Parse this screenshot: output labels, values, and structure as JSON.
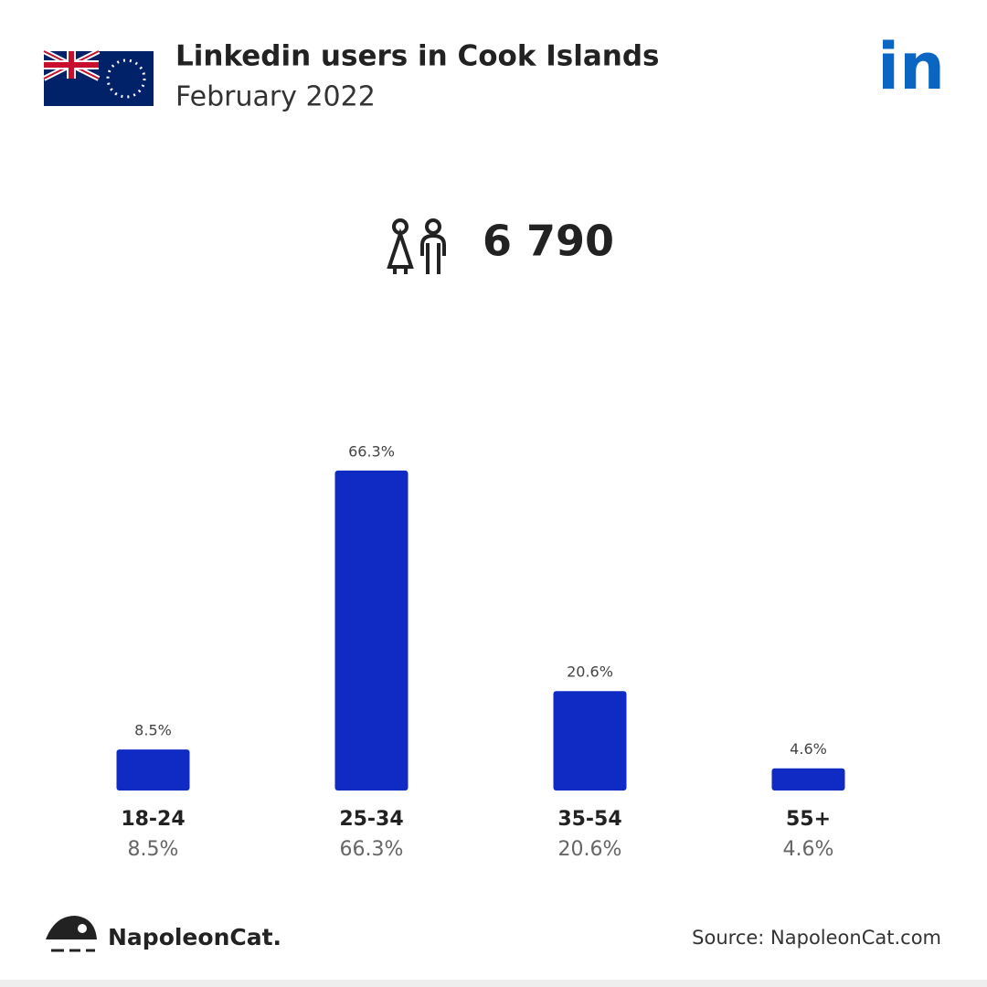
{
  "title": "Linkedin users in Cook Islands",
  "subtitle": "February 2022",
  "total_users": "6 790",
  "linkedin_logo": "in",
  "brand": "NapoleonCat.",
  "source": "Source: NapoleonCat.com",
  "chart_data": {
    "type": "bar",
    "categories": [
      "18-24",
      "25-34",
      "35-54",
      "55+"
    ],
    "values": [
      8.5,
      66.3,
      20.6,
      4.6
    ],
    "value_labels": [
      "8.5%",
      "66.3%",
      "20.6%",
      "4.6%"
    ],
    "color": "#102ac4"
  }
}
